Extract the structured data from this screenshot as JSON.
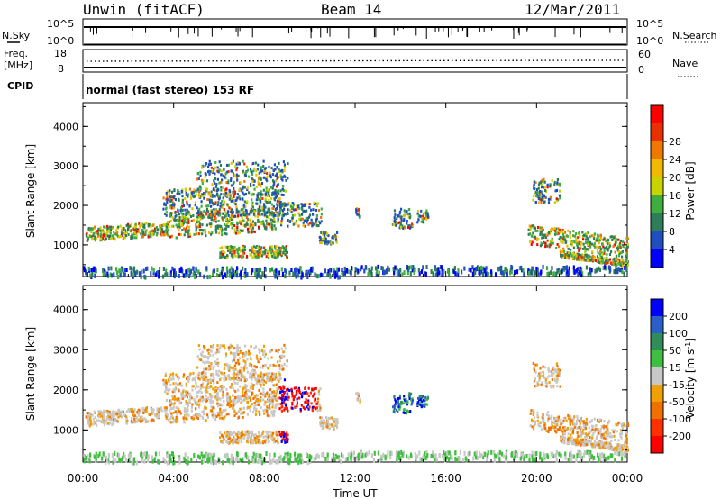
{
  "header": {
    "title": "Unwin (fitACF)",
    "beam": "Beam 14",
    "date": "12/Mar/2011"
  },
  "strip_panels": {
    "nsky_label": "N.Sky",
    "nsky_ticks": [
      "10^5",
      "10^0"
    ],
    "nsearch_label": "N.Search",
    "nsearch_ticks": [
      "10^5",
      "10^0"
    ],
    "freq_label": "Freq.",
    "freq_unit": "[MHz]",
    "freq_ticks": [
      "18",
      "8"
    ],
    "nave_label": "Nave",
    "nave_ticks": [
      "60",
      "0"
    ],
    "cpid_label": "CPID",
    "cpid_text": "normal (fast stereo) 153 RF"
  },
  "chart_data": [
    {
      "type": "heatmap",
      "name": "power",
      "ylabel": "Slant Range [km]",
      "xlabel": "",
      "y_ticks": [
        "1000",
        "2000",
        "3000",
        "4000"
      ],
      "ylim": [
        200,
        4600
      ],
      "x_ticks": [
        "00:00",
        "04:00",
        "08:00",
        "12:00",
        "16:00",
        "20:00",
        "00:00"
      ],
      "xlim": [
        0,
        24
      ],
      "colorbar": {
        "label": "Power [dB]",
        "ticks": [
          "4",
          "8",
          "12",
          "16",
          "20",
          "24",
          "28"
        ],
        "colors": [
          "#0000ff",
          "#1f4fbf",
          "#2e7d5a",
          "#3fae3f",
          "#c8d400",
          "#f2b800",
          "#f07800",
          "#e83000",
          "#ff0000"
        ]
      }
    },
    {
      "type": "heatmap",
      "name": "velocity",
      "ylabel": "Slant Range [km]",
      "xlabel": "Time UT",
      "y_ticks": [
        "1000",
        "2000",
        "3000",
        "4000"
      ],
      "ylim": [
        200,
        4600
      ],
      "x_ticks": [
        "00:00",
        "04:00",
        "08:00",
        "12:00",
        "16:00",
        "20:00",
        "00:00"
      ],
      "xlim": [
        0,
        24
      ],
      "colorbar": {
        "label": "Velocity [m s",
        "label_sup": "-1",
        "label_end": "]",
        "ticks": [
          "200",
          "100",
          "50",
          "15",
          "-15",
          "-50",
          "-100",
          "-200"
        ],
        "colors": [
          "#0000ff",
          "#2a5fc8",
          "#2e8d5a",
          "#3fbf3f",
          "#c8c8c8",
          "#f0a000",
          "#f07000",
          "#ff3000",
          "#ff0000"
        ]
      }
    }
  ]
}
